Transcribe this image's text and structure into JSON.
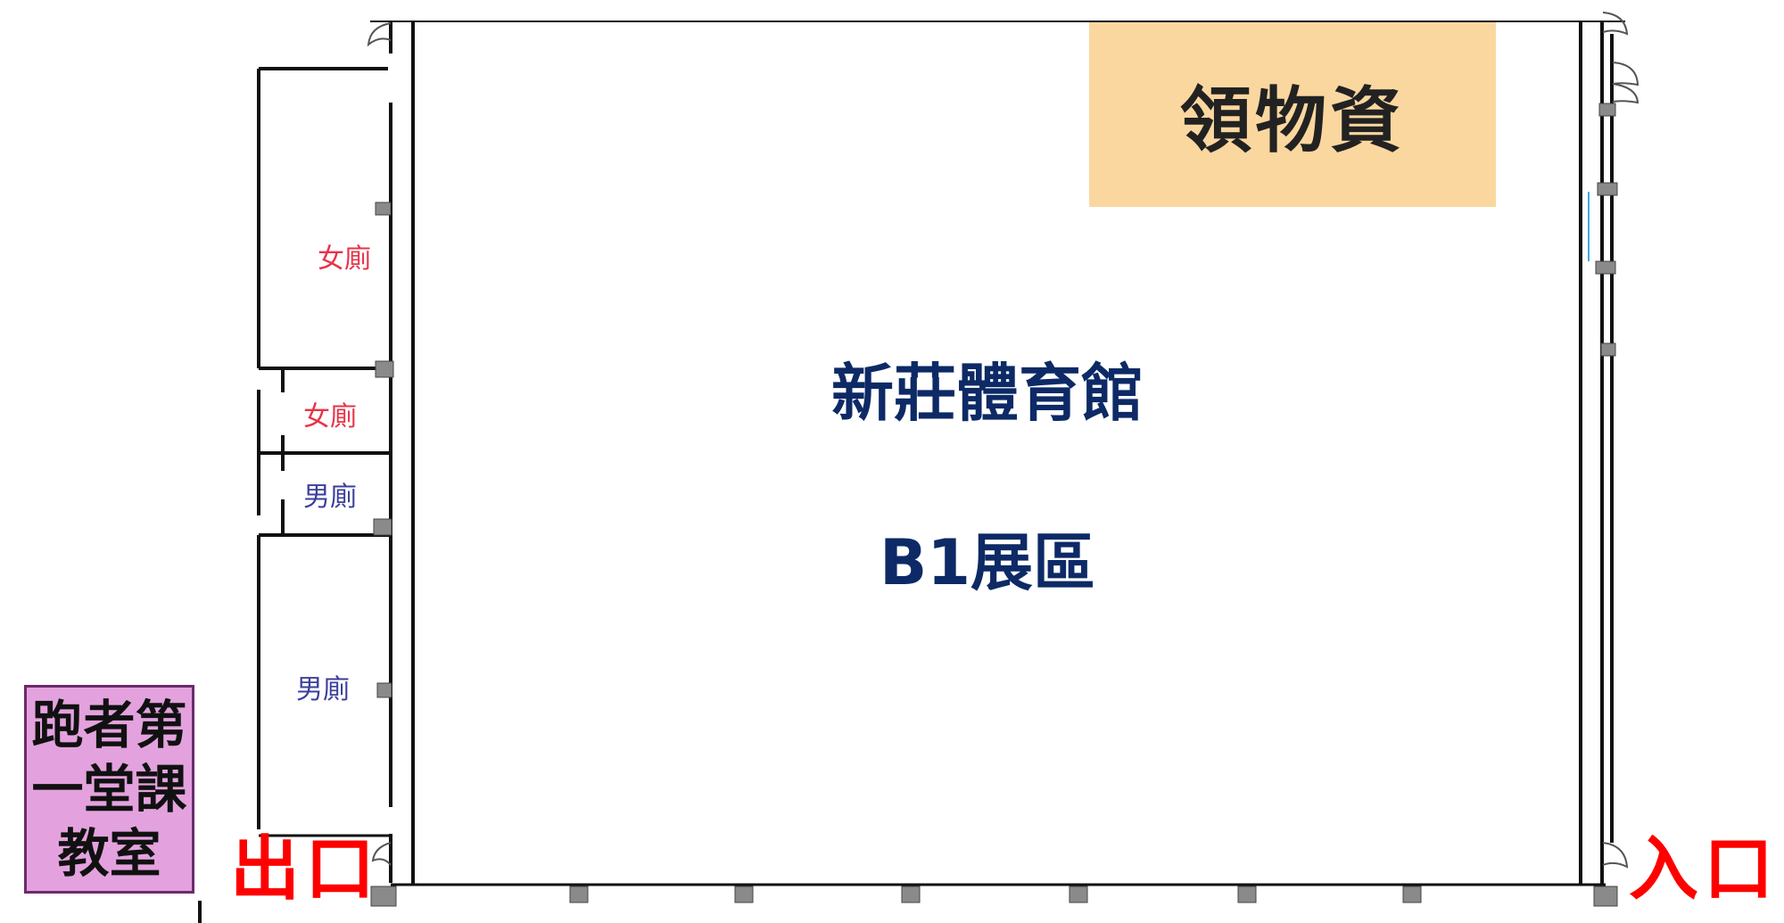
{
  "venue": {
    "name": "新莊體育館",
    "area": "B1展區"
  },
  "supply_pickup": {
    "label": "領物資",
    "color": "#fbd7a0"
  },
  "classroom": {
    "lines": [
      "跑者第",
      "一堂課",
      "教室"
    ],
    "color": "#e3a2de"
  },
  "restrooms": [
    {
      "label": "女廁",
      "type": "female"
    },
    {
      "label": "女廁",
      "type": "female"
    },
    {
      "label": "男廁",
      "type": "male"
    },
    {
      "label": "男廁",
      "type": "male"
    }
  ],
  "exit": {
    "label": "出口"
  },
  "entrance": {
    "label": "入口"
  },
  "colors": {
    "wall": "#111111",
    "column": "#8a8a8a",
    "accent_text": "#ff0000",
    "hall_text": "#0d2a66"
  }
}
